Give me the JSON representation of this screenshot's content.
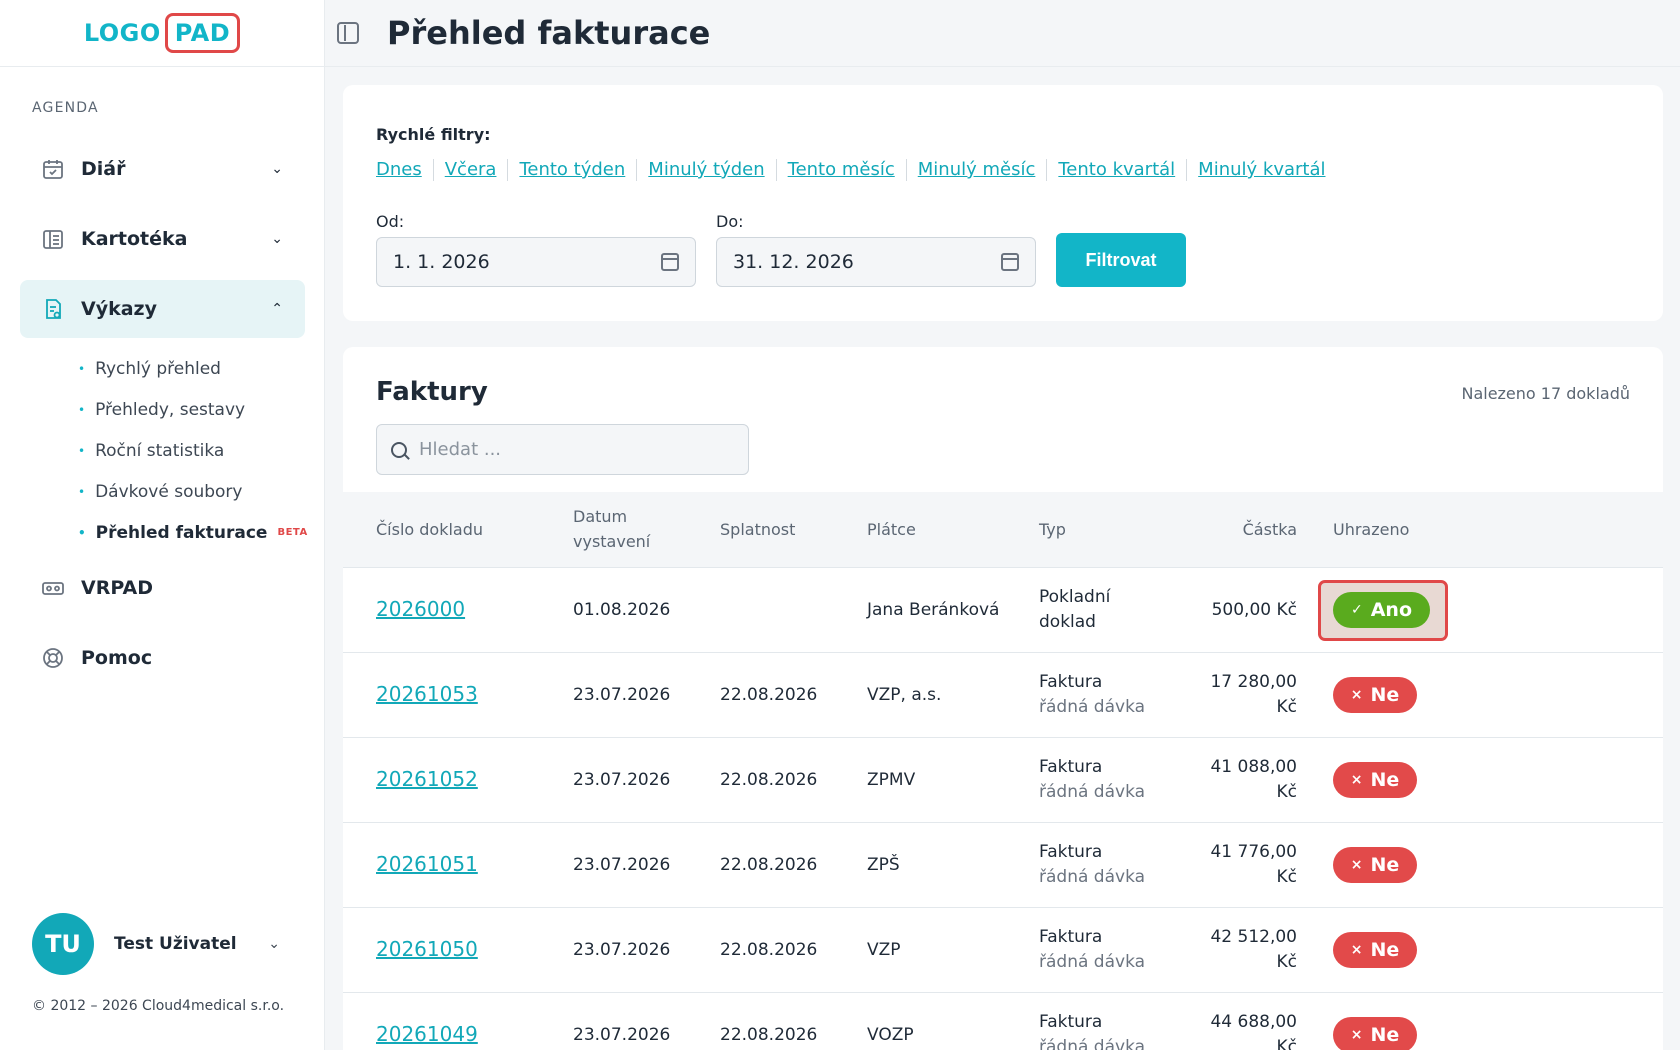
{
  "brand": {
    "logo_text": "LOGO",
    "logo_pad": "PAD"
  },
  "sidebar": {
    "section_label": "AGENDA",
    "items": [
      {
        "label": "Diář",
        "icon": "calendar-icon",
        "expanded": false
      },
      {
        "label": "Kartotéka",
        "icon": "card-index-icon",
        "expanded": false
      },
      {
        "label": "Výkazy",
        "icon": "report-icon",
        "expanded": true
      },
      {
        "label": "VRPAD",
        "icon": "vr-headset-icon"
      },
      {
        "label": "Pomoc",
        "icon": "lifebuoy-icon"
      }
    ],
    "subitems": [
      {
        "label": "Rychlý přehled"
      },
      {
        "label": "Přehledy, sestavy"
      },
      {
        "label": "Roční statistika"
      },
      {
        "label": "Dávkové soubory"
      },
      {
        "label": "Přehled fakturace",
        "badge": "BETA"
      }
    ],
    "user": {
      "initials": "TU",
      "name": "Test Uživatel"
    },
    "copyright": "© 2012 – 2026 Cloud4medical s.r.o."
  },
  "header": {
    "title": "Přehled fakturace"
  },
  "filters": {
    "quick_label": "Rychlé filtry:",
    "quick_links": [
      "Dnes",
      "Včera",
      "Tento týden",
      "Minulý týden",
      "Tento měsíc",
      "Minulý měsíc",
      "Tento kvartál",
      "Minulý kvartál"
    ],
    "from_label": "Od:",
    "from_value": "1. 1. 2026",
    "to_label": "Do:",
    "to_value": "31. 12. 2026",
    "button": "Filtrovat"
  },
  "invoices": {
    "title": "Faktury",
    "found": "Nalezeno 17 dokladů",
    "search_placeholder": "Hledat ...",
    "columns": {
      "number": "Číslo dokladu",
      "issued_1": "Datum",
      "issued_2": "vystavení",
      "due": "Splatnost",
      "payer": "Plátce",
      "type": "Typ",
      "amount": "Částka",
      "paid": "Uhrazeno"
    },
    "rows": [
      {
        "number": "2026000",
        "issued": "01.08.2026",
        "due": "",
        "payer": "Jana Beránková",
        "type1": "Pokladní",
        "type2": "doklad",
        "amount1": "500,00 Kč",
        "amount2": "",
        "paid": "Ano",
        "paid_mark": "✓"
      },
      {
        "number": "20261053",
        "issued": "23.07.2026",
        "due": "22.08.2026",
        "payer": "VZP, a.s.",
        "type1": "Faktura",
        "type2": "řádná dávka",
        "amount1": "17 280,00",
        "amount2": "Kč",
        "paid": "Ne",
        "paid_mark": "×"
      },
      {
        "number": "20261052",
        "issued": "23.07.2026",
        "due": "22.08.2026",
        "payer": "ZPMV",
        "type1": "Faktura",
        "type2": "řádná dávka",
        "amount1": "41 088,00",
        "amount2": "Kč",
        "paid": "Ne",
        "paid_mark": "×"
      },
      {
        "number": "20261051",
        "issued": "23.07.2026",
        "due": "22.08.2026",
        "payer": "ZPŠ",
        "type1": "Faktura",
        "type2": "řádná dávka",
        "amount1": "41 776,00",
        "amount2": "Kč",
        "paid": "Ne",
        "paid_mark": "×"
      },
      {
        "number": "20261050",
        "issued": "23.07.2026",
        "due": "22.08.2026",
        "payer": "VZP",
        "type1": "Faktura",
        "type2": "řádná dávka",
        "amount1": "42 512,00",
        "amount2": "Kč",
        "paid": "Ne",
        "paid_mark": "×"
      },
      {
        "number": "20261049",
        "issued": "23.07.2026",
        "due": "22.08.2026",
        "payer": "VOZP",
        "type1": "Faktura",
        "type2": "řádná dávka",
        "amount1": "44 688,00",
        "amount2": "Kč",
        "paid": "Ne",
        "paid_mark": "×"
      }
    ]
  },
  "colors": {
    "accent": "#12b5c8",
    "paid_yes": "#5aab1e",
    "paid_no": "#e24a4a",
    "highlight": "#e04848"
  }
}
